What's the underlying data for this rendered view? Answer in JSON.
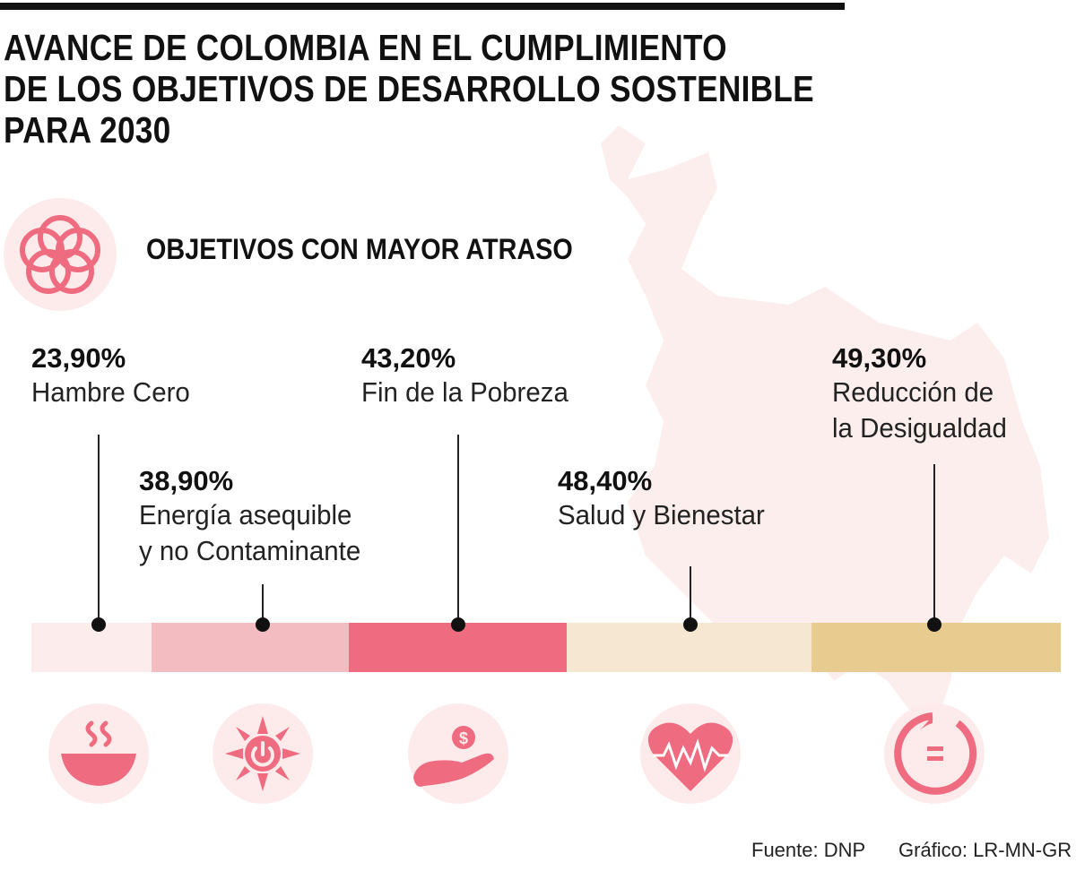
{
  "title_lines": [
    "AVANCE DE COLOMBIA EN EL CUMPLIMIENTO",
    "DE LOS OBJETIVOS DE DESARROLLO SOSTENIBLE",
    "PARA 2030"
  ],
  "subtitle": "OBJETIVOS CON MAYOR ATRASO",
  "header_icon": "sdg-flower-rings-icon",
  "goals": [
    {
      "percent": "23,90%",
      "label_lines": [
        "Hambre Cero"
      ],
      "value": 23.9,
      "color": "#fdecec",
      "icon": "soup-bowl-icon"
    },
    {
      "percent": "38,90%",
      "label_lines": [
        "Energía asequible",
        "y no Contaminante"
      ],
      "value": 38.9,
      "color": "#f2bcc0",
      "icon": "sun-power-icon"
    },
    {
      "percent": "43,20%",
      "label_lines": [
        "Fin de la Pobreza"
      ],
      "value": 43.2,
      "color": "#ee6b80",
      "icon": "hand-coin-icon"
    },
    {
      "percent": "48,40%",
      "label_lines": [
        "Salud y Bienestar"
      ],
      "value": 48.4,
      "color": "#f5e7d2",
      "icon": "heart-pulse-icon"
    },
    {
      "percent": "49,30%",
      "label_lines": [
        "Reducción de",
        "la Desigualdad"
      ],
      "value": 49.3,
      "color": "#e8cb8f",
      "icon": "equality-circle-icon"
    }
  ],
  "colors": {
    "accent": "#ee6b80",
    "icon_bg": "#fdebec",
    "map": "#fdeeee"
  },
  "footer": {
    "source": "Fuente: DNP",
    "credit": "Gráfico: LR-MN-GR"
  }
}
